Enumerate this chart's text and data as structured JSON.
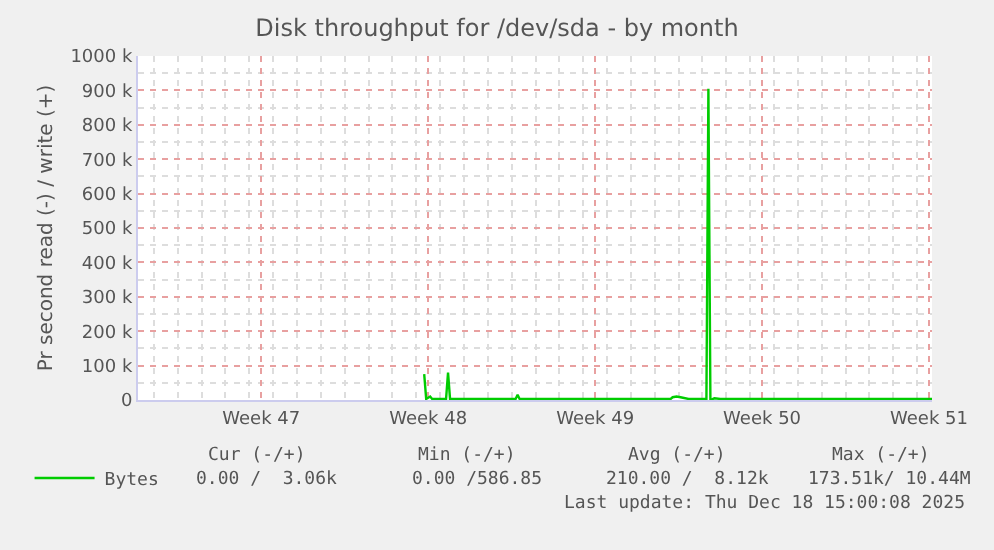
{
  "chart_data": {
    "type": "line",
    "title": "Disk throughput for /dev/sda - by month",
    "ylabel": "Pr second read (-) / write (+)",
    "x": [
      "2025-11-27T08:00",
      "2025-11-27T10:00",
      "2025-11-27T14:00",
      "2025-11-27T16:00",
      "2025-11-28T06:00",
      "2025-11-28T08:00",
      "2025-11-28T10:00",
      "2025-12-01T04:00",
      "2025-12-01T06:00",
      "2025-12-01T08:00",
      "2025-12-07T16:00",
      "2025-12-07T18:00",
      "2025-12-07T22:00",
      "2025-12-08T02:00",
      "2025-12-08T10:00",
      "2025-12-09T04:00",
      "2025-12-09T06:00",
      "2025-12-09T08:00",
      "2025-12-09T12:00",
      "2025-12-09T18:00",
      "2025-12-11T05:00",
      "2025-12-18T15:00"
    ],
    "series": [
      {
        "name": "Bytes",
        "color": "#00cc00",
        "values": [
          75000,
          3000,
          10000,
          3000,
          3000,
          80000,
          3000,
          3000,
          15000,
          3000,
          3000,
          8000,
          10000,
          8000,
          3000,
          3000,
          905000,
          0,
          5000,
          3000,
          3000,
          3000
        ]
      }
    ],
    "xlim": [
      "2025-11-15T08:00",
      "2025-12-18T15:00"
    ],
    "xticks": [
      {
        "value": "2025-11-20T12:00",
        "label": "Week 47"
      },
      {
        "value": "2025-11-27T12:00",
        "label": "Week 48"
      },
      {
        "value": "2025-12-04T12:00",
        "label": "Week 49"
      },
      {
        "value": "2025-12-11T12:00",
        "label": "Week 50"
      },
      {
        "value": "2025-12-18T12:00",
        "label": "Week 51"
      }
    ],
    "ylim": [
      0,
      1000000
    ],
    "yticks": [
      {
        "value": 0,
        "label": "0"
      },
      {
        "value": 100000,
        "label": "100 k"
      },
      {
        "value": 200000,
        "label": "200 k"
      },
      {
        "value": 300000,
        "label": "300 k"
      },
      {
        "value": 400000,
        "label": "400 k"
      },
      {
        "value": 500000,
        "label": "500 k"
      },
      {
        "value": 600000,
        "label": "600 k"
      },
      {
        "value": 700000,
        "label": "700 k"
      },
      {
        "value": 800000,
        "label": "800 k"
      },
      {
        "value": 900000,
        "label": "900 k"
      },
      {
        "value": 1000000,
        "label": "1000 k"
      }
    ],
    "grid": true,
    "legend": "bottom left",
    "marker": "none",
    "line_style": "solid",
    "annotations": [
      "Cur (-/+)",
      "Min (-/+)",
      "Avg (-/+)",
      "Max (-/+)",
      "0.00 /  3.06k",
      "0.00 /586.85",
      "210.00 /  8.12k",
      "173.51k/ 10.44M",
      "Last update: Thu Dec 18 15:00:08 2025"
    ]
  }
}
